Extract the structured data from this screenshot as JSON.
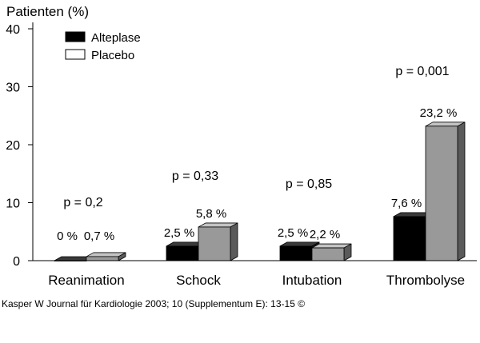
{
  "chart_data": {
    "type": "bar",
    "title": "",
    "ylabel": "Patienten (%)",
    "xlabel": "",
    "ylim": [
      0,
      40
    ],
    "yticks": [
      0,
      10,
      20,
      30,
      40
    ],
    "grid": false,
    "legend_position": "top-left",
    "categories": [
      "Reanimation",
      "Schock",
      "Intubation",
      "Thrombolyse"
    ],
    "series": [
      {
        "name": "Alteplase",
        "values": [
          0,
          2.5,
          2.5,
          7.6
        ],
        "labels": [
          "0 %",
          "2,5 %",
          "2,5 %",
          "7,6 %"
        ],
        "color": "#000000"
      },
      {
        "name": "Placebo",
        "values": [
          0.7,
          5.8,
          2.2,
          23.2
        ],
        "labels": [
          "0,7 %",
          "5,8 %",
          "2,2 %",
          "23,2 %"
        ],
        "color": "#999999"
      }
    ],
    "pvalues": [
      "p = 0,2",
      "p = 0,33",
      "p = 0,85",
      "p = 0,001"
    ]
  },
  "caption": "Kasper W Journal für Kardiologie 2003; 10 (Supplementum E): 13-15 ©"
}
